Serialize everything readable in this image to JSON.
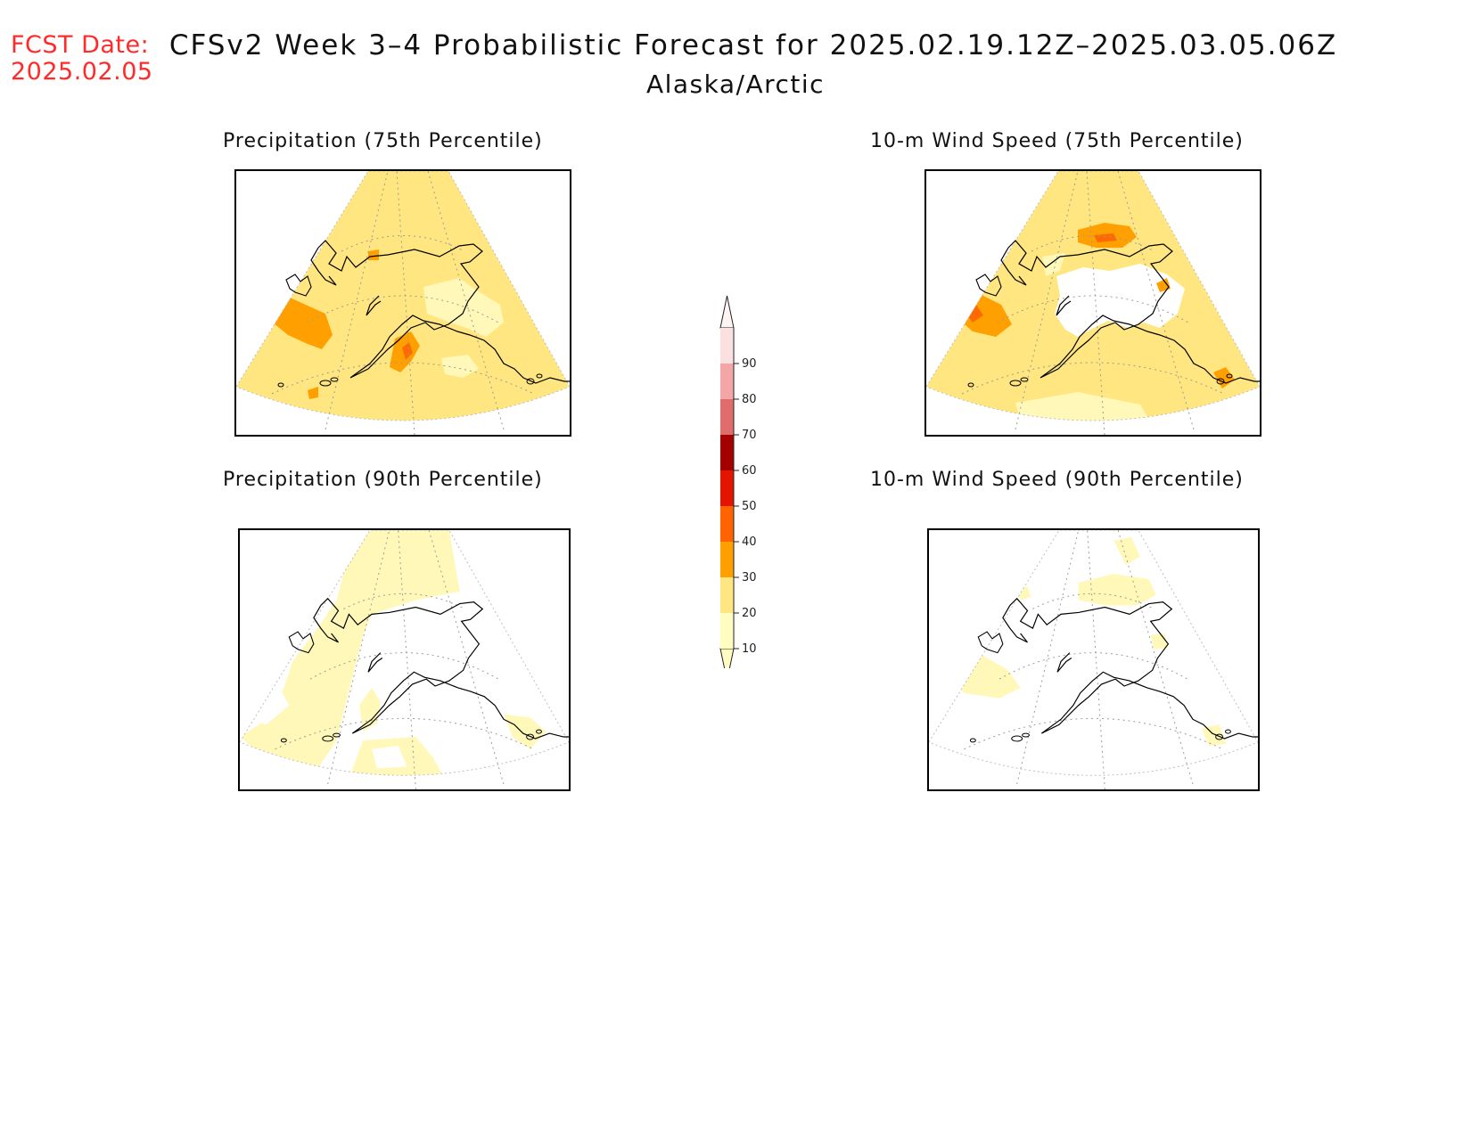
{
  "header": {
    "fcst_label": "FCST Date:",
    "fcst_date": "2025.02.05",
    "title": "CFSv2 Week 3–4 Probabilistic Forecast for 2025.02.19.12Z–2025.03.05.06Z",
    "region": "Alaska/Arctic"
  },
  "panels": [
    {
      "title": "Precipitation (75th Percentile)",
      "dominant_category": "20-30",
      "max_category": "40-50"
    },
    {
      "title": "10-m Wind Speed (75th Percentile)",
      "dominant_category": "20-30",
      "max_category": "40-50"
    },
    {
      "title": "Precipitation (90th Percentile)",
      "dominant_category": "10-20",
      "max_category": "10-20"
    },
    {
      "title": "10-m Wind Speed (90th Percentile)",
      "dominant_category": "<10",
      "max_category": "10-20"
    }
  ],
  "colorbar": {
    "ticks": [
      "10",
      "20",
      "30",
      "40",
      "50",
      "60",
      "70",
      "80",
      "90"
    ],
    "colors": [
      "#fffdbf",
      "#ffe680",
      "#ffa000",
      "#ff6400",
      "#e31400",
      "#a50000",
      "#e06c6c",
      "#f2a6a6",
      "#fbe0e0"
    ]
  },
  "colors": {
    "header_red": "#ff2a2a",
    "c10": "#fff8b8",
    "c20": "#ffe680",
    "c30": "#ffa000",
    "c40": "#ff6a00"
  }
}
